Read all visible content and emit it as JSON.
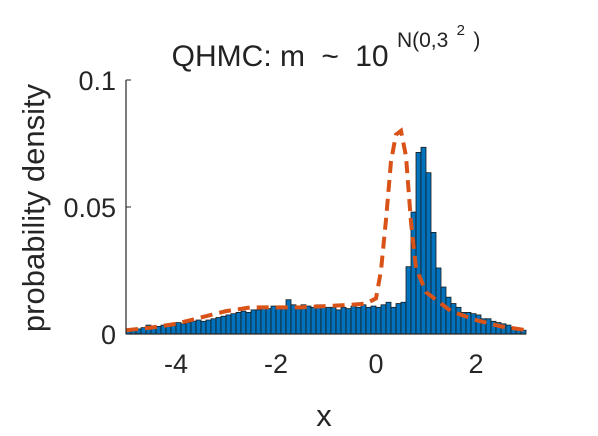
{
  "chart_data": {
    "type": "bar",
    "title": {
      "prefix": "QHMC: m",
      "symbol": "~",
      "base": "10",
      "exponent_main": "N(0,3",
      "exponent_sup": "2",
      "exponent_close": ")"
    },
    "xlabel": "x",
    "ylabel": "probability density",
    "xlim": [
      -5,
      3
    ],
    "ylim": [
      0,
      0.1
    ],
    "xticks": [
      -4,
      -2,
      0,
      2
    ],
    "xtick_labels": [
      "-4",
      "-2",
      "0",
      "2"
    ],
    "yticks": [
      0,
      0.05,
      0.1
    ],
    "ytick_labels": [
      "0",
      "0.05",
      "0.1"
    ],
    "grid": false,
    "bin_width": 0.1,
    "bin_start": -5,
    "histogram": [
      0.0015,
      0.002,
      0.002,
      0.0025,
      0.0035,
      0.003,
      0.003,
      0.0035,
      0.004,
      0.0035,
      0.0045,
      0.004,
      0.0045,
      0.005,
      0.0055,
      0.005,
      0.0055,
      0.006,
      0.0065,
      0.007,
      0.0075,
      0.008,
      0.0085,
      0.009,
      0.0085,
      0.0095,
      0.0095,
      0.0105,
      0.01,
      0.011,
      0.011,
      0.0105,
      0.0135,
      0.0115,
      0.0105,
      0.0115,
      0.011,
      0.0105,
      0.0115,
      0.0105,
      0.0105,
      0.0105,
      0.0095,
      0.0105,
      0.01,
      0.011,
      0.0105,
      0.0115,
      0.0105,
      0.011,
      0.0105,
      0.0115,
      0.0125,
      0.0105,
      0.012,
      0.0125,
      0.0265,
      0.048,
      0.0715,
      0.0735,
      0.0635,
      0.04,
      0.026,
      0.0185,
      0.0145,
      0.012,
      0.0105,
      0.0085,
      0.0085,
      0.008,
      0.0075,
      0.006,
      0.006,
      0.005,
      0.0045,
      0.004,
      0.0035,
      0.0025,
      0.002,
      0.0015
    ],
    "density_curve": {
      "x": [
        -5,
        -4.5,
        -4,
        -3.5,
        -3,
        -2.5,
        -2,
        -1.5,
        -1,
        -0.5,
        -0.2,
        0,
        0.1,
        0.2,
        0.3,
        0.4,
        0.5,
        0.6,
        0.7,
        0.8,
        1.0,
        1.5,
        2,
        2.5,
        3
      ],
      "y": [
        0.0015,
        0.0025,
        0.004,
        0.0065,
        0.009,
        0.0105,
        0.0105,
        0.0105,
        0.011,
        0.0115,
        0.012,
        0.014,
        0.025,
        0.045,
        0.068,
        0.0785,
        0.08,
        0.07,
        0.044,
        0.026,
        0.0165,
        0.009,
        0.0055,
        0.003,
        0.0015
      ]
    },
    "colors": {
      "bars": "#0072BD",
      "bar_edge": "#1a1a1a",
      "curve": "#D95319",
      "axis": "#262626"
    }
  }
}
